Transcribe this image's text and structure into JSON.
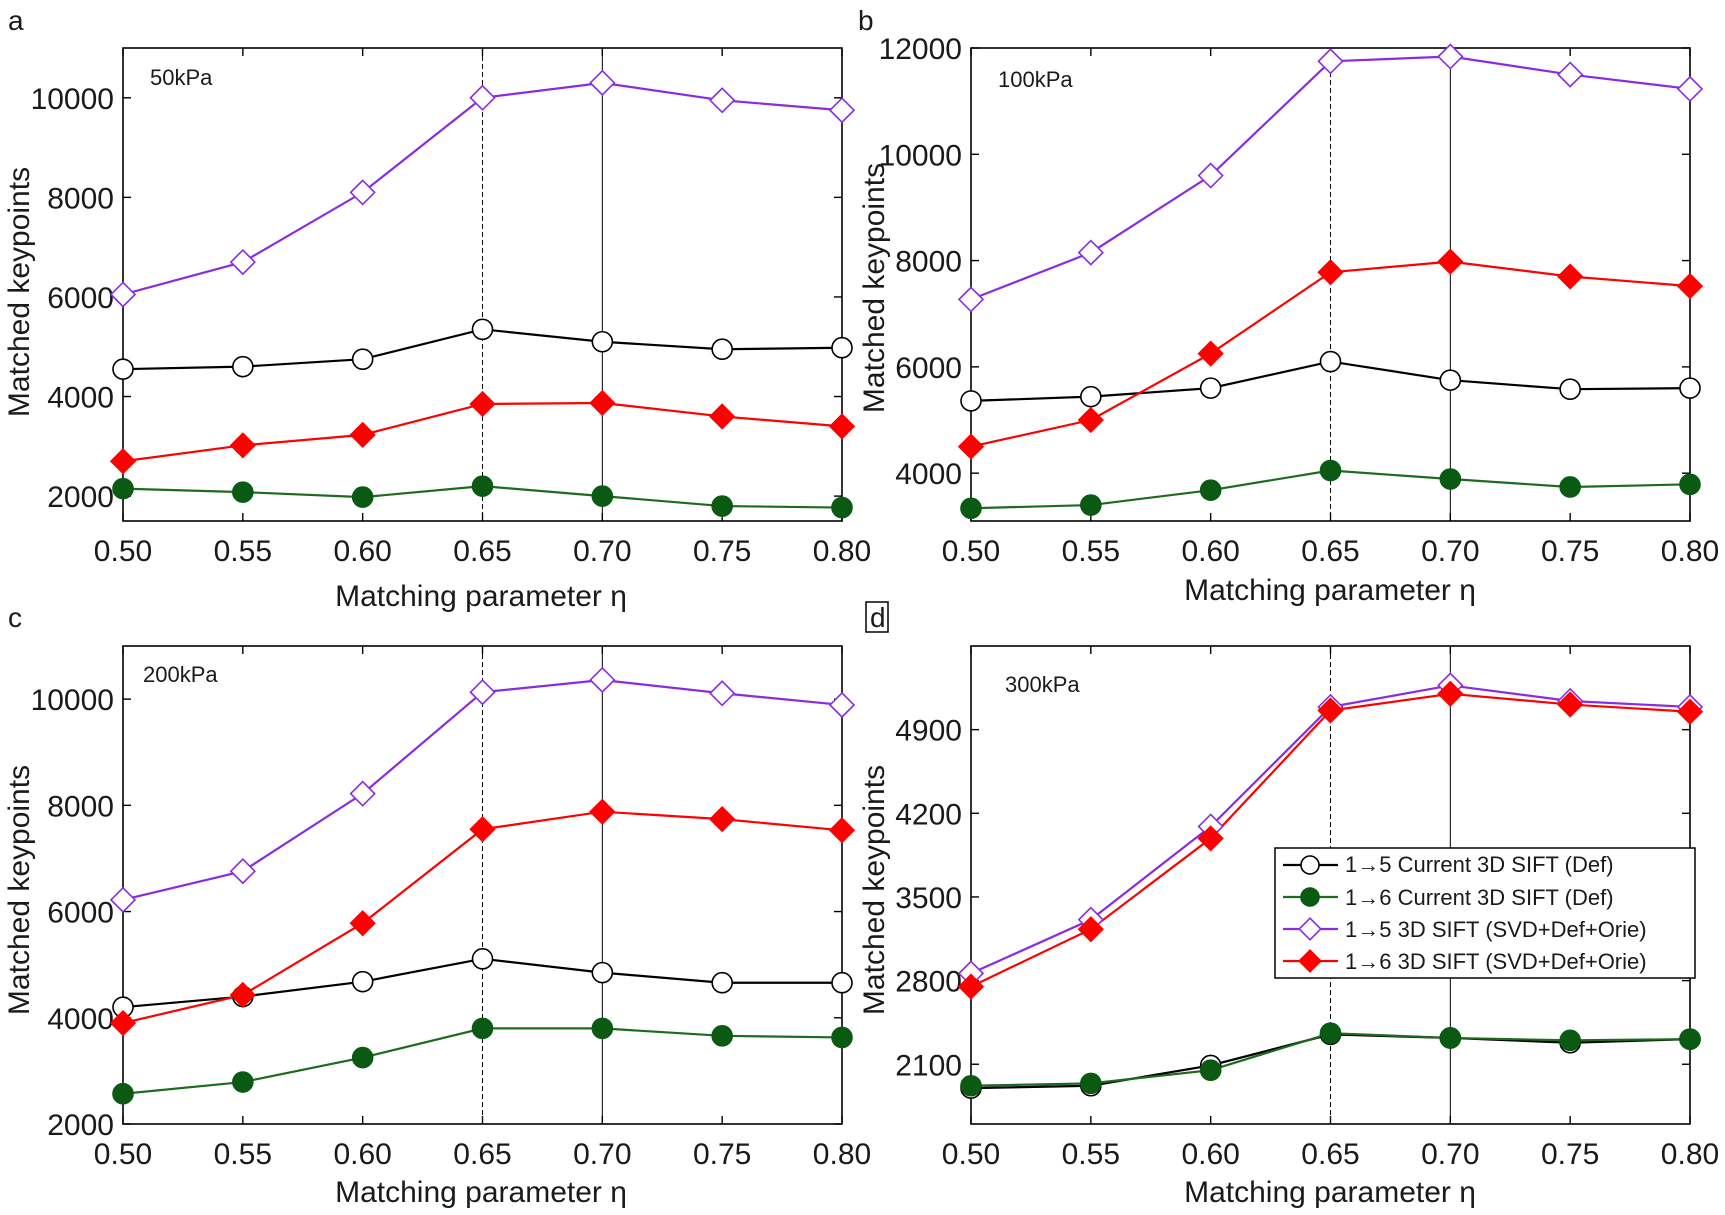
{
  "figure": {
    "series_styles": {
      "cur15": {
        "color": "#000000",
        "marker": "circle",
        "fill": "#ffffff"
      },
      "cur16": {
        "color": "#1e6b1e",
        "marker": "circle",
        "fill": "#0b5a14"
      },
      "new15": {
        "color": "#8a2be2",
        "marker": "diamond",
        "fill": "#ffffff"
      },
      "new16": {
        "color": "#ff0000",
        "marker": "diamond",
        "fill": "#ff0000"
      }
    },
    "legend": {
      "panel": "d",
      "entries": [
        {
          "series": "cur15",
          "label": "1→5 Current 3D SIFT (Def)"
        },
        {
          "series": "cur16",
          "label": "1→6 Current 3D SIFT (Def)"
        },
        {
          "series": "new15",
          "label": "1→5 3D SIFT (SVD+Def+Orie)"
        },
        {
          "series": "new16",
          "label": "1→6 3D SIFT (SVD+Def+Orie)"
        }
      ]
    }
  },
  "chart_data": [
    {
      "panel": "a",
      "type": "line",
      "annotation": "50kPa",
      "xlabel": "Matching parameter η",
      "ylabel": "Matched keypoints",
      "xlim": [
        0.5,
        0.8
      ],
      "ylim": [
        1500,
        11000
      ],
      "yticks": [
        2000,
        4000,
        6000,
        8000,
        10000
      ],
      "xticks": [
        "0.50",
        "0.55",
        "0.60",
        "0.65",
        "0.70",
        "0.75",
        "0.80"
      ],
      "x": [
        0.5,
        0.55,
        0.6,
        0.65,
        0.7,
        0.75,
        0.8
      ],
      "vlines": [
        {
          "x": 0.65,
          "style": "dashed"
        },
        {
          "x": 0.7,
          "style": "solid"
        }
      ],
      "series": [
        {
          "key": "cur15",
          "values": [
            4550,
            4600,
            4750,
            5350,
            5100,
            4950,
            4980
          ]
        },
        {
          "key": "cur16",
          "values": [
            2150,
            2080,
            1980,
            2200,
            2000,
            1800,
            1770
          ]
        },
        {
          "key": "new15",
          "values": [
            6050,
            6700,
            8100,
            10000,
            10300,
            9950,
            9750
          ]
        },
        {
          "key": "new16",
          "values": [
            2700,
            3020,
            3230,
            3850,
            3870,
            3600,
            3400
          ]
        }
      ]
    },
    {
      "panel": "b",
      "type": "line",
      "annotation": "100kPa",
      "xlabel": "Matching parameter η",
      "ylabel": "Matched keypoints",
      "xlim": [
        0.5,
        0.8
      ],
      "ylim": [
        3100,
        12000
      ],
      "yticks": [
        4000,
        6000,
        8000,
        10000,
        12000
      ],
      "xticks": [
        "0.50",
        "0.55",
        "0.60",
        "0.65",
        "0.70",
        "0.75",
        "0.80"
      ],
      "x": [
        0.5,
        0.55,
        0.6,
        0.65,
        0.7,
        0.75,
        0.8
      ],
      "vlines": [
        {
          "x": 0.65,
          "style": "dashed"
        },
        {
          "x": 0.7,
          "style": "solid"
        }
      ],
      "series": [
        {
          "key": "cur15",
          "values": [
            5360,
            5440,
            5600,
            6100,
            5750,
            5580,
            5600
          ]
        },
        {
          "key": "cur16",
          "values": [
            3340,
            3400,
            3680,
            4050,
            3890,
            3740,
            3790
          ]
        },
        {
          "key": "new15",
          "values": [
            7270,
            8150,
            9600,
            11750,
            11840,
            11500,
            11230
          ]
        },
        {
          "key": "new16",
          "values": [
            4500,
            5000,
            6250,
            7780,
            7980,
            7700,
            7520
          ]
        }
      ]
    },
    {
      "panel": "c",
      "type": "line",
      "annotation": "200kPa",
      "xlabel": "Matching parameter η",
      "ylabel": "Matched keypoints",
      "xlim": [
        0.5,
        0.8
      ],
      "ylim": [
        2000,
        11000
      ],
      "yticks": [
        2000,
        4000,
        6000,
        8000,
        10000
      ],
      "xticks": [
        "0.50",
        "0.55",
        "0.60",
        "0.65",
        "0.70",
        "0.75",
        "0.80"
      ],
      "x": [
        0.5,
        0.55,
        0.6,
        0.65,
        0.7,
        0.75,
        0.8
      ],
      "vlines": [
        {
          "x": 0.65,
          "style": "dashed"
        },
        {
          "x": 0.7,
          "style": "solid"
        }
      ],
      "series": [
        {
          "key": "cur15",
          "values": [
            4200,
            4400,
            4680,
            5110,
            4850,
            4660,
            4660
          ]
        },
        {
          "key": "cur16",
          "values": [
            2570,
            2790,
            3250,
            3800,
            3800,
            3660,
            3630
          ]
        },
        {
          "key": "new15",
          "values": [
            6220,
            6760,
            8220,
            10130,
            10360,
            10110,
            9890
          ]
        },
        {
          "key": "new16",
          "values": [
            3900,
            4430,
            5780,
            7550,
            7880,
            7740,
            7530
          ]
        }
      ]
    },
    {
      "panel": "d",
      "type": "line",
      "annotation": "300kPa",
      "xlabel": "Matching parameter η",
      "ylabel": "Matched keypoints",
      "xlim": [
        0.5,
        0.8
      ],
      "ylim": [
        1600,
        5600
      ],
      "yticks": [
        2100,
        2800,
        3500,
        4200,
        4900
      ],
      "xticks": [
        "0.50",
        "0.55",
        "0.60",
        "0.65",
        "0.70",
        "0.75",
        "0.80"
      ],
      "x": [
        0.5,
        0.55,
        0.6,
        0.65,
        0.7,
        0.75,
        0.8
      ],
      "vlines": [
        {
          "x": 0.65,
          "style": "dashed"
        },
        {
          "x": 0.7,
          "style": "solid"
        }
      ],
      "series": [
        {
          "key": "cur15",
          "values": [
            1900,
            1920,
            2090,
            2350,
            2320,
            2280,
            2310
          ]
        },
        {
          "key": "cur16",
          "values": [
            1920,
            1940,
            2050,
            2360,
            2320,
            2300,
            2310
          ]
        },
        {
          "key": "new15",
          "values": [
            2860,
            3310,
            4090,
            5090,
            5270,
            5140,
            5090
          ]
        },
        {
          "key": "new16",
          "values": [
            2750,
            3230,
            3990,
            5060,
            5200,
            5110,
            5050
          ]
        }
      ]
    }
  ]
}
